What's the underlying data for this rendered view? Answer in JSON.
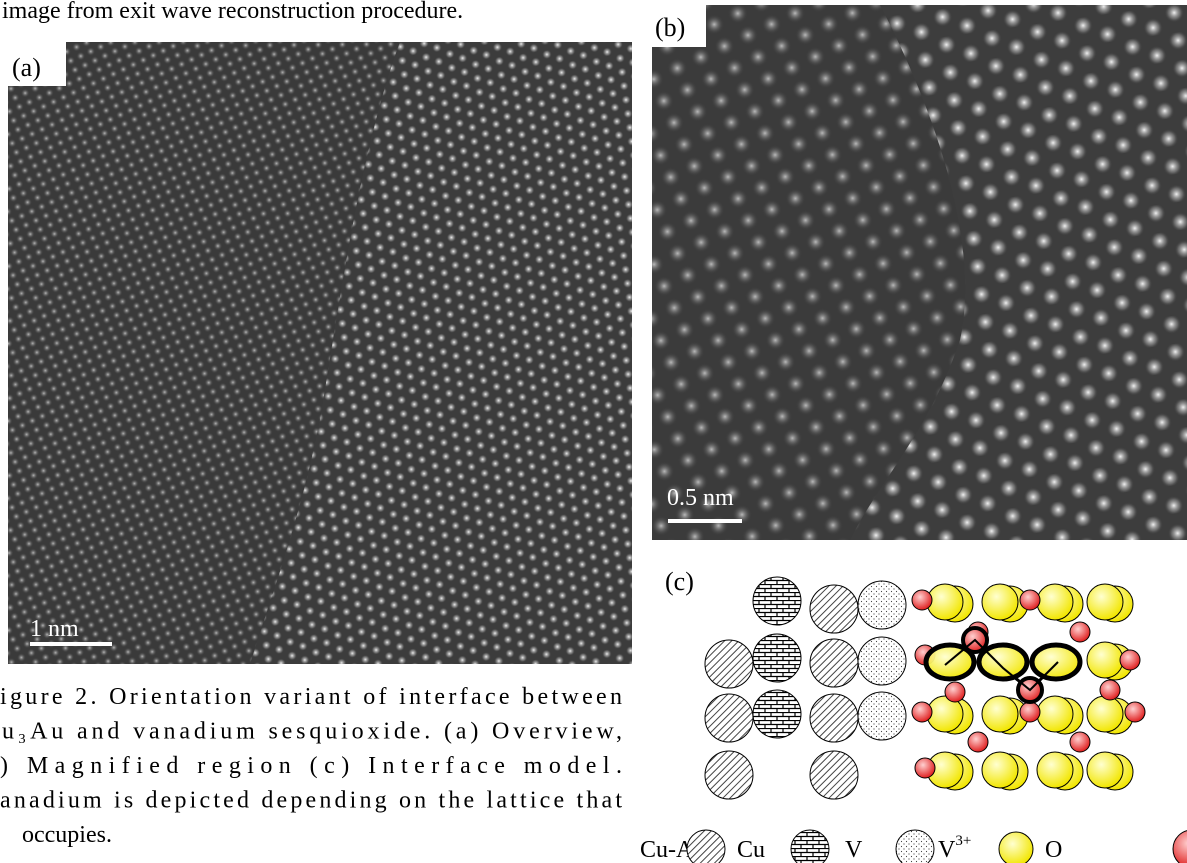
{
  "header": {
    "text": "image from exit wave reconstruction procedure."
  },
  "panels": {
    "a": {
      "label": "(a)",
      "scale_bar": "1 nm"
    },
    "b": {
      "label": "(b)",
      "scale_bar": "0.5 nm"
    },
    "c": {
      "label": "(c)"
    }
  },
  "caption": {
    "lines": [
      "igure 2. Orientation variant of interface between",
      "u₃Au and vanadium sesquioxide. (a) Overview,",
      ") Magnified region (c) Interface model.",
      "anadium is depicted depending on the lattice that",
      "occupies."
    ]
  },
  "legend": {
    "items": [
      {
        "label": "Cu-Au"
      },
      {
        "label": "Cu"
      },
      {
        "label": "V"
      },
      {
        "label": "V",
        "sup": "3+"
      },
      {
        "label": "O"
      }
    ]
  }
}
